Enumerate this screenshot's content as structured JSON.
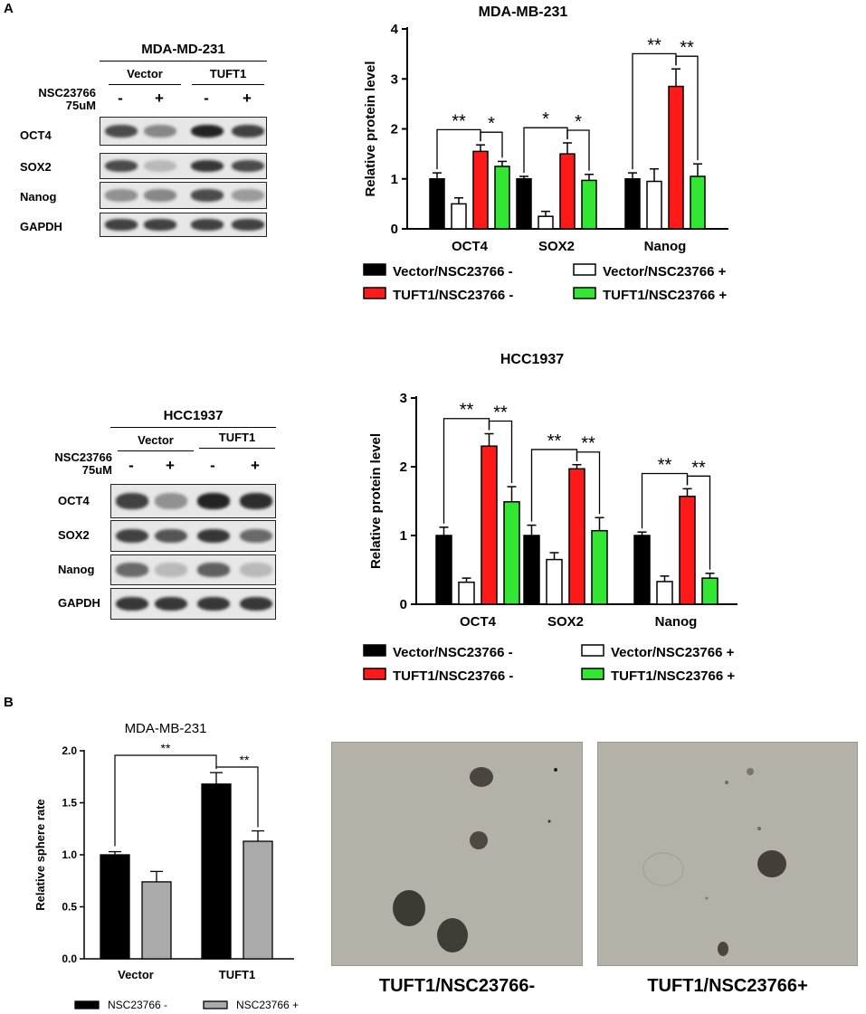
{
  "panel_labels": {
    "a": "A",
    "b": "B"
  },
  "blots": [
    {
      "title": "MDA-MD-231",
      "condition_label": [
        "NSC23766",
        "75uM"
      ],
      "groups": [
        "Vector",
        "TUFT1"
      ],
      "treatment_signs": [
        "-",
        "+",
        "-",
        "+"
      ],
      "rows": [
        {
          "label": "OCT4",
          "intensity": [
            0.75,
            0.45,
            0.95,
            0.8
          ]
        },
        {
          "label": "SOX2",
          "intensity": [
            0.75,
            0.2,
            0.85,
            0.75
          ]
        },
        {
          "label": "Nanog",
          "intensity": [
            0.4,
            0.45,
            0.75,
            0.35
          ]
        },
        {
          "label": "GAPDH",
          "intensity": [
            0.8,
            0.8,
            0.8,
            0.8
          ]
        }
      ]
    },
    {
      "title": "HCC1937",
      "condition_label": [
        "NSC23766",
        "75uM"
      ],
      "groups": [
        "Vector",
        "TUFT1"
      ],
      "treatment_signs": [
        "-",
        "+",
        "-",
        "+"
      ],
      "rows": [
        {
          "label": "OCT4",
          "intensity": [
            0.8,
            0.4,
            0.95,
            0.9
          ]
        },
        {
          "label": "SOX2",
          "intensity": [
            0.8,
            0.7,
            0.85,
            0.6
          ]
        },
        {
          "label": "Nanog",
          "intensity": [
            0.6,
            0.2,
            0.65,
            0.2
          ]
        },
        {
          "label": "GAPDH",
          "intensity": [
            0.85,
            0.85,
            0.85,
            0.85
          ]
        }
      ]
    }
  ],
  "chart_data": [
    {
      "type": "bar",
      "title": "MDA-MB-231",
      "ylabel": "Relative protein level",
      "xlabel": "",
      "ylim": [
        0,
        4
      ],
      "yticks": [
        "0",
        "1",
        "2",
        "3",
        "4"
      ],
      "categories": [
        "OCT4",
        "SOX2",
        "Nanog"
      ],
      "series": [
        {
          "name": "Vector/NSC23766 -",
          "color": "#000000",
          "values": [
            1.0,
            1.0,
            1.0
          ],
          "errors": [
            0.12,
            0.05,
            0.12
          ]
        },
        {
          "name": "Vector/NSC23766 +",
          "color": "#ffffff",
          "values": [
            0.5,
            0.25,
            0.95
          ],
          "errors": [
            0.12,
            0.1,
            0.25
          ]
        },
        {
          "name": "TUFT1/NSC23766 -",
          "color": "#ff1a1a",
          "values": [
            1.55,
            1.5,
            2.85
          ],
          "errors": [
            0.13,
            0.22,
            0.35
          ]
        },
        {
          "name": "TUFT1/NSC23766 +",
          "color": "#33e633",
          "values": [
            1.25,
            0.97,
            1.05
          ],
          "errors": [
            0.1,
            0.12,
            0.25
          ]
        }
      ],
      "significance": [
        {
          "category": 0,
          "from": 0,
          "to": 2,
          "label": "**"
        },
        {
          "category": 0,
          "from": 2,
          "to": 3,
          "label": "*"
        },
        {
          "category": 1,
          "from": 0,
          "to": 2,
          "label": "*"
        },
        {
          "category": 1,
          "from": 2,
          "to": 3,
          "label": "*"
        },
        {
          "category": 2,
          "from": 0,
          "to": 2,
          "label": "**"
        },
        {
          "category": 2,
          "from": 2,
          "to": 3,
          "label": "**"
        }
      ],
      "legend_position": "bottom"
    },
    {
      "type": "bar",
      "title": "HCC1937",
      "ylabel": "Relative protein level",
      "xlabel": "",
      "ylim": [
        0,
        3
      ],
      "yticks": [
        "0",
        "1",
        "2",
        "3"
      ],
      "categories": [
        "OCT4",
        "SOX2",
        "Nanog"
      ],
      "series": [
        {
          "name": "Vector/NSC23766 -",
          "color": "#000000",
          "values": [
            1.0,
            1.0,
            1.0
          ],
          "errors": [
            0.12,
            0.15,
            0.05
          ]
        },
        {
          "name": "Vector/NSC23766 +",
          "color": "#ffffff",
          "values": [
            0.32,
            0.65,
            0.33
          ],
          "errors": [
            0.06,
            0.1,
            0.08
          ]
        },
        {
          "name": "TUFT1/NSC23766 -",
          "color": "#ff1a1a",
          "values": [
            2.3,
            1.97,
            1.57
          ],
          "errors": [
            0.18,
            0.06,
            0.11
          ]
        },
        {
          "name": "TUFT1/NSC23766 +",
          "color": "#33e633",
          "values": [
            1.49,
            1.07,
            0.38
          ],
          "errors": [
            0.22,
            0.19,
            0.07
          ]
        }
      ],
      "significance": [
        {
          "category": 0,
          "from": 0,
          "to": 2,
          "label": "**"
        },
        {
          "category": 0,
          "from": 2,
          "to": 3,
          "label": "**"
        },
        {
          "category": 1,
          "from": 0,
          "to": 2,
          "label": "**"
        },
        {
          "category": 1,
          "from": 2,
          "to": 3,
          "label": "**"
        },
        {
          "category": 2,
          "from": 0,
          "to": 2,
          "label": "**"
        },
        {
          "category": 2,
          "from": 2,
          "to": 3,
          "label": "**"
        }
      ],
      "legend_position": "bottom"
    },
    {
      "type": "bar",
      "title": "MDA-MB-231",
      "ylabel": "Relative sphere rate",
      "xlabel": "",
      "ylim": [
        0,
        2.0
      ],
      "yticks": [
        "0.0",
        "0.5",
        "1.0",
        "1.5",
        "2.0"
      ],
      "categories": [
        "Vector",
        "TUFT1"
      ],
      "series": [
        {
          "name": "NSC23766 -",
          "color": "#000000",
          "values": [
            1.0,
            1.68
          ],
          "errors": [
            0.03,
            0.11
          ]
        },
        {
          "name": "NSC23766 +",
          "color": "#aaaaaa",
          "values": [
            0.74,
            1.13
          ],
          "errors": [
            0.1,
            0.1
          ]
        }
      ],
      "significance": [
        {
          "from_cat": 0,
          "from_series": 0,
          "to_cat": 1,
          "to_series": 0,
          "label": "**"
        },
        {
          "from_cat": 1,
          "from_series": 0,
          "to_cat": 1,
          "to_series": 1,
          "label": "**"
        }
      ],
      "legend_position": "bottom"
    }
  ],
  "photos": [
    {
      "caption": "TUFT1/NSC23766-"
    },
    {
      "caption": "TUFT1/NSC23766+"
    }
  ]
}
